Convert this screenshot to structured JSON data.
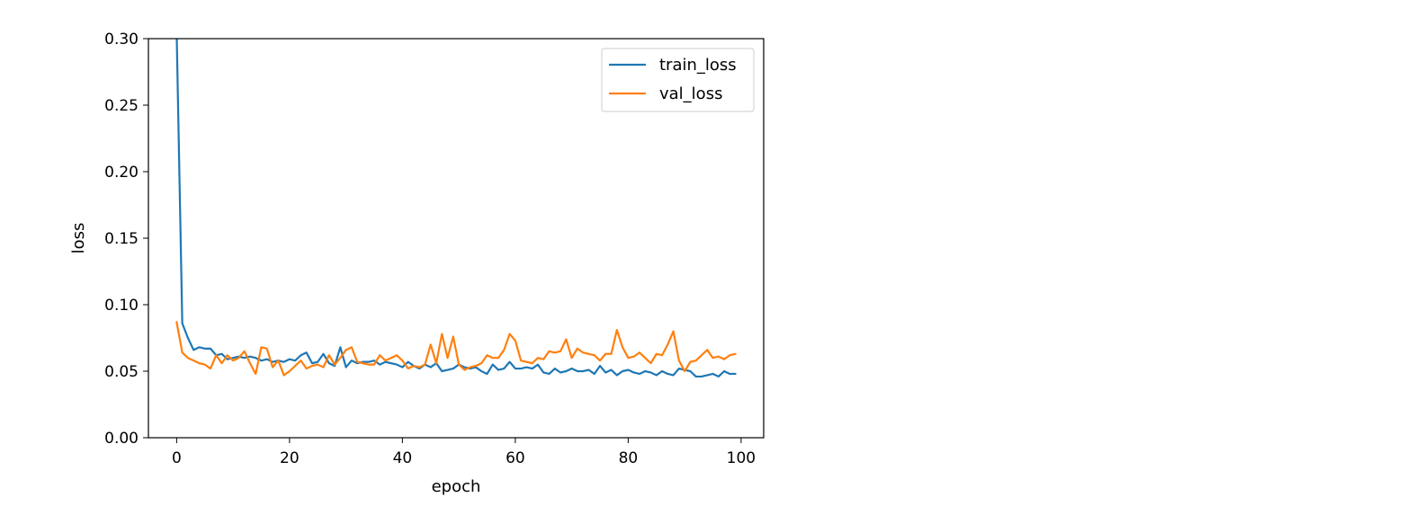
{
  "chart_data": {
    "type": "line",
    "title": "",
    "xlabel": "epoch",
    "ylabel": "loss",
    "xlim": [
      -5,
      104
    ],
    "ylim": [
      0.0,
      0.3
    ],
    "xticks": [
      0,
      20,
      40,
      60,
      80,
      100
    ],
    "xtick_labels": [
      "0",
      "20",
      "40",
      "60",
      "80",
      "100"
    ],
    "yticks": [
      0.0,
      0.05,
      0.1,
      0.15,
      0.2,
      0.25,
      0.3
    ],
    "ytick_labels": [
      "0.00",
      "0.05",
      "0.10",
      "0.15",
      "0.20",
      "0.25",
      "0.30"
    ],
    "grid": false,
    "legend_position": "upper right",
    "x": [
      0,
      1,
      2,
      3,
      4,
      5,
      6,
      7,
      8,
      9,
      10,
      11,
      12,
      13,
      14,
      15,
      16,
      17,
      18,
      19,
      20,
      21,
      22,
      23,
      24,
      25,
      26,
      27,
      28,
      29,
      30,
      31,
      32,
      33,
      34,
      35,
      36,
      37,
      38,
      39,
      40,
      41,
      42,
      43,
      44,
      45,
      46,
      47,
      48,
      49,
      50,
      51,
      52,
      53,
      54,
      55,
      56,
      57,
      58,
      59,
      60,
      61,
      62,
      63,
      64,
      65,
      66,
      67,
      68,
      69,
      70,
      71,
      72,
      73,
      74,
      75,
      76,
      77,
      78,
      79,
      80,
      81,
      82,
      83,
      84,
      85,
      86,
      87,
      88,
      89,
      90,
      91,
      92,
      93,
      94,
      95,
      96,
      97,
      98,
      99
    ],
    "series": [
      {
        "name": "train_loss",
        "color": "#1f77b4",
        "values": [
          0.305,
          0.086,
          0.075,
          0.066,
          0.068,
          0.067,
          0.067,
          0.062,
          0.063,
          0.059,
          0.06,
          0.061,
          0.06,
          0.061,
          0.06,
          0.058,
          0.059,
          0.057,
          0.058,
          0.057,
          0.059,
          0.058,
          0.062,
          0.064,
          0.056,
          0.057,
          0.063,
          0.056,
          0.054,
          0.068,
          0.053,
          0.058,
          0.056,
          0.057,
          0.057,
          0.058,
          0.055,
          0.057,
          0.056,
          0.055,
          0.053,
          0.057,
          0.054,
          0.052,
          0.055,
          0.053,
          0.056,
          0.05,
          0.051,
          0.052,
          0.055,
          0.053,
          0.052,
          0.053,
          0.05,
          0.048,
          0.055,
          0.051,
          0.052,
          0.057,
          0.052,
          0.052,
          0.053,
          0.052,
          0.055,
          0.049,
          0.048,
          0.052,
          0.049,
          0.05,
          0.052,
          0.05,
          0.05,
          0.051,
          0.048,
          0.054,
          0.049,
          0.051,
          0.047,
          0.05,
          0.051,
          0.049,
          0.048,
          0.05,
          0.049,
          0.047,
          0.05,
          0.048,
          0.047,
          0.052,
          0.051,
          0.05,
          0.046,
          0.046,
          0.047,
          0.048,
          0.046,
          0.05,
          0.048,
          0.048
        ]
      },
      {
        "name": "val_loss",
        "color": "#ff7f0e",
        "values": [
          0.087,
          0.064,
          0.06,
          0.058,
          0.056,
          0.055,
          0.052,
          0.062,
          0.056,
          0.062,
          0.058,
          0.06,
          0.065,
          0.056,
          0.048,
          0.068,
          0.067,
          0.053,
          0.058,
          0.047,
          0.05,
          0.054,
          0.058,
          0.052,
          0.054,
          0.055,
          0.053,
          0.062,
          0.055,
          0.06,
          0.066,
          0.068,
          0.057,
          0.056,
          0.055,
          0.055,
          0.062,
          0.058,
          0.06,
          0.062,
          0.058,
          0.052,
          0.054,
          0.053,
          0.055,
          0.07,
          0.056,
          0.078,
          0.06,
          0.076,
          0.055,
          0.051,
          0.053,
          0.054,
          0.056,
          0.062,
          0.06,
          0.06,
          0.066,
          0.078,
          0.073,
          0.058,
          0.057,
          0.056,
          0.06,
          0.059,
          0.065,
          0.064,
          0.065,
          0.074,
          0.06,
          0.067,
          0.064,
          0.063,
          0.062,
          0.058,
          0.063,
          0.063,
          0.081,
          0.068,
          0.06,
          0.061,
          0.064,
          0.06,
          0.056,
          0.063,
          0.062,
          0.07,
          0.08,
          0.058,
          0.05,
          0.057,
          0.058,
          0.062,
          0.066,
          0.06,
          0.061,
          0.059,
          0.062,
          0.063
        ]
      }
    ]
  }
}
